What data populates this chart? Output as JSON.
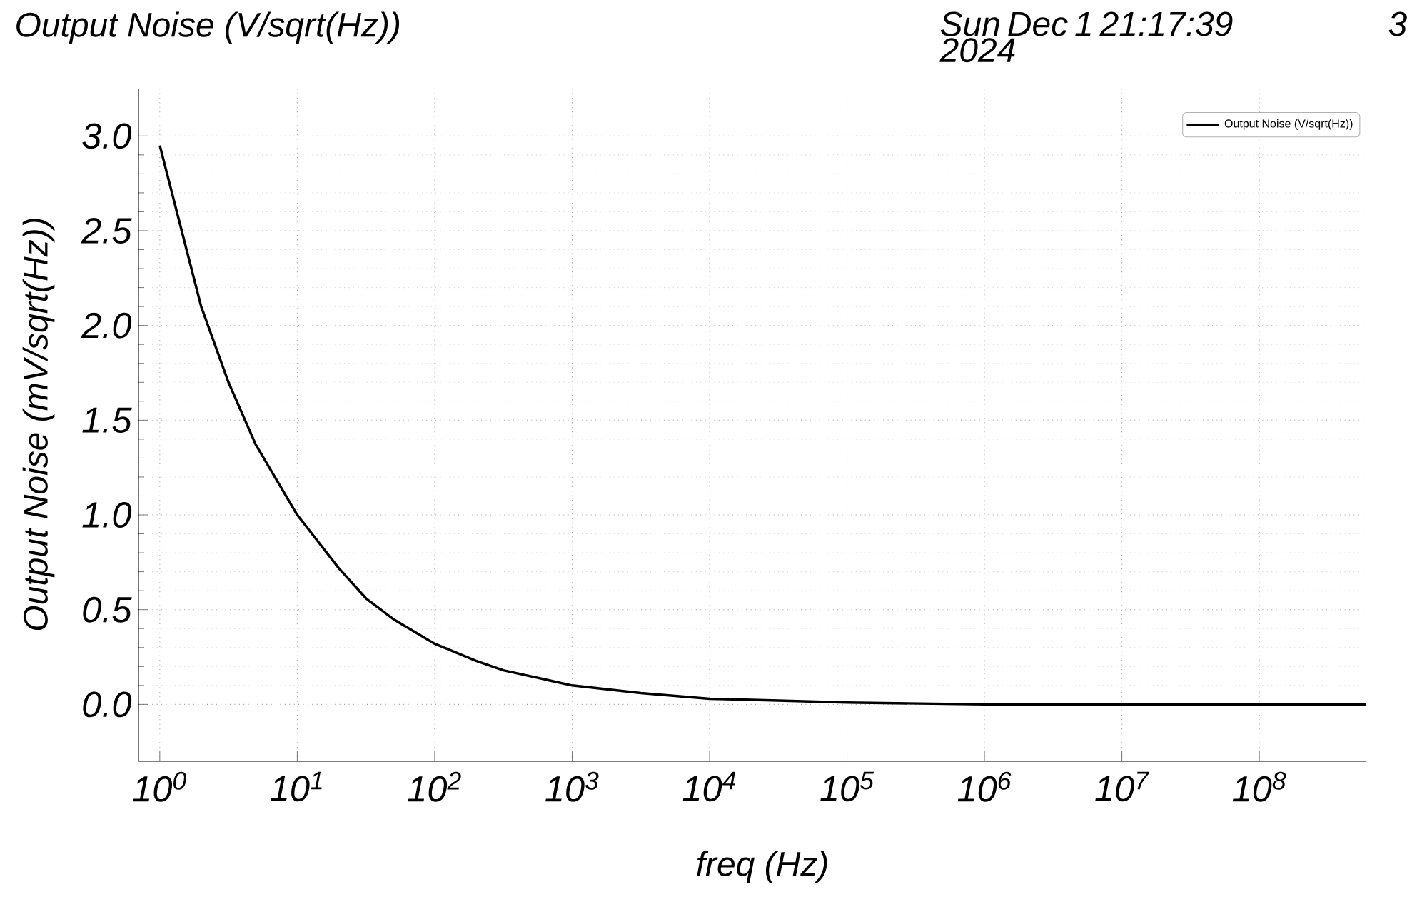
{
  "chart_data": {
    "type": "line",
    "title": "Output Noise (V/sqrt(Hz))",
    "subtitle": "Sun Dec 1 21:17:39 2024",
    "annotations": [
      "3"
    ],
    "xlabel": "freq (Hz)",
    "ylabel": "Output Noise (mV/sqrt(Hz))",
    "log": "x",
    "grid": true,
    "legend": "top right",
    "xlim": [
      0.7,
      600000000
    ],
    "ylim": [
      -0.3,
      3.25
    ],
    "xticks": [
      {
        "value": 1,
        "label": "10$^{0}$"
      },
      {
        "value": 10,
        "label": "10$^{1}$"
      },
      {
        "value": 100,
        "label": "10$^{2}$"
      },
      {
        "value": 1000,
        "label": "10$^{3}$"
      },
      {
        "value": 10000,
        "label": "10$^{4}$"
      },
      {
        "value": 100000,
        "label": "10$^{5}$"
      },
      {
        "value": 1000000,
        "label": "10$^{6}$"
      },
      {
        "value": 10000000,
        "label": "10$^{7}$"
      },
      {
        "value": 100000000,
        "label": "10$^{8}$"
      }
    ],
    "yticks": [
      {
        "value": 0,
        "label": "0.0"
      },
      {
        "value": 0.5,
        "label": "0.5"
      },
      {
        "value": 1,
        "label": "1.0"
      },
      {
        "value": 1.5,
        "label": "1.5"
      },
      {
        "value": 2,
        "label": "2.0"
      },
      {
        "value": 2.5,
        "label": "2.5"
      },
      {
        "value": 3,
        "label": "3.0"
      }
    ],
    "x": [
      1,
      2,
      3.16,
      5,
      10,
      20,
      31.6,
      50,
      100,
      200,
      316,
      1000,
      3162,
      10000,
      31620,
      100000,
      1000000,
      10000000,
      100000000,
      600000000
    ],
    "series": [
      {
        "name": "Output Noise (V/sqrt(Hz))",
        "color": "#000000",
        "values": [
          2.95,
          2.1,
          1.7,
          1.37,
          1.0,
          0.72,
          0.56,
          0.45,
          0.32,
          0.23,
          0.18,
          0.1,
          0.06,
          0.03,
          0.02,
          0.01,
          0.0,
          0.0,
          0.0,
          0.0
        ]
      }
    ]
  }
}
